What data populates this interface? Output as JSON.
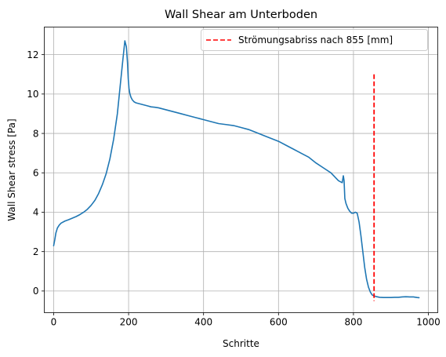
{
  "chart_data": {
    "type": "line",
    "title": "Wall Shear am Unterboden",
    "xlabel": "Schritte",
    "ylabel": "Wall Shear stress [Pa]",
    "xlim": [
      -25,
      1025
    ],
    "ylim": [
      -1.1,
      13.4
    ],
    "xticks": [
      0,
      200,
      400,
      600,
      800,
      1000
    ],
    "yticks": [
      0,
      2,
      4,
      6,
      8,
      10,
      12
    ],
    "grid": true,
    "legend_position": "top-right",
    "series": [
      {
        "color": "#1f77b4",
        "x": [
          0,
          3,
          6,
          10,
          15,
          20,
          30,
          40,
          50,
          60,
          70,
          80,
          90,
          100,
          110,
          120,
          130,
          140,
          150,
          160,
          170,
          178,
          185,
          190,
          194,
          197,
          199,
          201,
          203,
          206,
          210,
          215,
          220,
          230,
          240,
          250,
          260,
          270,
          280,
          290,
          300,
          320,
          340,
          360,
          380,
          400,
          420,
          440,
          460,
          480,
          500,
          520,
          540,
          560,
          580,
          600,
          620,
          640,
          660,
          680,
          700,
          720,
          740,
          760,
          770,
          773,
          775,
          777,
          780,
          785,
          790,
          795,
          800,
          805,
          810,
          815,
          820,
          825,
          830,
          835,
          840,
          845,
          850,
          855,
          860,
          865,
          870,
          880,
          890,
          900,
          910,
          920,
          930,
          940,
          950,
          960,
          970,
          975
        ],
        "y": [
          2.3,
          2.6,
          2.95,
          3.2,
          3.35,
          3.45,
          3.55,
          3.62,
          3.7,
          3.78,
          3.88,
          4.0,
          4.15,
          4.35,
          4.6,
          4.95,
          5.4,
          5.95,
          6.7,
          7.7,
          9.0,
          10.5,
          11.8,
          12.7,
          12.4,
          11.6,
          10.8,
          10.3,
          10.05,
          9.85,
          9.7,
          9.6,
          9.55,
          9.5,
          9.45,
          9.4,
          9.35,
          9.33,
          9.3,
          9.25,
          9.2,
          9.1,
          9.0,
          8.9,
          8.8,
          8.7,
          8.6,
          8.5,
          8.45,
          8.4,
          8.3,
          8.2,
          8.05,
          7.9,
          7.75,
          7.6,
          7.4,
          7.2,
          7.0,
          6.8,
          6.5,
          6.25,
          6.0,
          5.6,
          5.5,
          5.85,
          5.6,
          4.7,
          4.45,
          4.2,
          4.05,
          3.95,
          3.95,
          4.0,
          3.95,
          3.5,
          2.8,
          2.0,
          1.2,
          0.6,
          0.2,
          -0.05,
          -0.2,
          -0.25,
          -0.28,
          -0.3,
          -0.32,
          -0.33,
          -0.33,
          -0.33,
          -0.32,
          -0.32,
          -0.3,
          -0.29,
          -0.3,
          -0.3,
          -0.33,
          -0.34
        ]
      }
    ],
    "vline": {
      "label": "Strömungsabriss nach 855 [mm]",
      "x": 855,
      "y_start": -0.5,
      "y_end": 11.0,
      "color": "#ff0000",
      "style": "dashed"
    }
  }
}
